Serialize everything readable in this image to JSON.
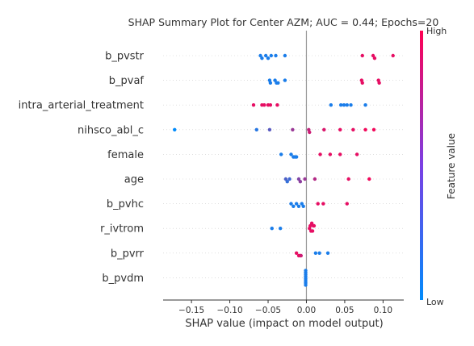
{
  "chart_data": {
    "type": "scatter",
    "title": "SHAP Summary Plot for Center AZM; AUC = 0.44; Epochs=20",
    "xlabel": "SHAP value (impact on model output)",
    "xlim": [
      -0.187,
      0.127
    ],
    "xticks": [
      -0.15,
      -0.1,
      -0.05,
      0.0,
      0.05,
      0.1
    ],
    "xtick_labels": [
      "−0.15",
      "−0.10",
      "−0.05",
      "0.00",
      "0.05",
      "0.10"
    ],
    "grid": false,
    "colors": {
      "low": "#008bfb",
      "high": "#ff0052"
    },
    "colorbar": {
      "label": "Feature value",
      "high_label": "High",
      "low_label": "Low"
    },
    "features": [
      {
        "name": "b_pvstr",
        "points": [
          [
            -0.06,
            0.1
          ],
          [
            -0.058,
            0.1
          ],
          [
            -0.053,
            0.1
          ],
          [
            -0.05,
            0.1
          ],
          [
            -0.046,
            0.1
          ],
          [
            -0.04,
            0.1
          ],
          [
            -0.028,
            0.1
          ],
          [
            0.073,
            0.9
          ],
          [
            0.087,
            0.9
          ],
          [
            0.089,
            0.9
          ],
          [
            0.113,
            0.9
          ]
        ]
      },
      {
        "name": "b_pvaf",
        "points": [
          [
            -0.048,
            0.1
          ],
          [
            -0.047,
            0.1
          ],
          [
            -0.041,
            0.1
          ],
          [
            -0.039,
            0.1
          ],
          [
            -0.037,
            0.1
          ],
          [
            -0.028,
            0.1
          ],
          [
            0.072,
            0.9
          ],
          [
            0.073,
            0.9
          ],
          [
            0.094,
            0.9
          ],
          [
            0.095,
            0.9
          ]
        ]
      },
      {
        "name": "intra_arterial_treatment",
        "points": [
          [
            -0.069,
            0.9
          ],
          [
            -0.058,
            0.9
          ],
          [
            -0.055,
            0.9
          ],
          [
            -0.05,
            0.9
          ],
          [
            -0.047,
            0.9
          ],
          [
            -0.038,
            0.9
          ],
          [
            0.032,
            0.1
          ],
          [
            0.045,
            0.1
          ],
          [
            0.049,
            0.1
          ],
          [
            0.053,
            0.1
          ],
          [
            0.058,
            0.1
          ],
          [
            0.077,
            0.1
          ]
        ]
      },
      {
        "name": "nihsco_abl_c",
        "points": [
          [
            -0.172,
            0.0
          ],
          [
            -0.065,
            0.15
          ],
          [
            -0.048,
            0.35
          ],
          [
            -0.018,
            0.6
          ],
          [
            0.003,
            0.75
          ],
          [
            0.004,
            0.8
          ],
          [
            0.023,
            0.85
          ],
          [
            0.044,
            0.9
          ],
          [
            0.061,
            0.9
          ],
          [
            0.077,
            0.95
          ],
          [
            0.088,
            0.95
          ]
        ]
      },
      {
        "name": "female",
        "points": [
          [
            -0.033,
            0.1
          ],
          [
            -0.02,
            0.1
          ],
          [
            -0.017,
            0.1
          ],
          [
            -0.015,
            0.1
          ],
          [
            -0.013,
            0.1
          ],
          [
            0.018,
            0.9
          ],
          [
            0.031,
            0.9
          ],
          [
            0.044,
            0.9
          ],
          [
            0.066,
            0.9
          ]
        ]
      },
      {
        "name": "age",
        "points": [
          [
            -0.027,
            0.3
          ],
          [
            -0.025,
            0.2
          ],
          [
            -0.022,
            0.25
          ],
          [
            -0.01,
            0.5
          ],
          [
            -0.008,
            0.55
          ],
          [
            -0.002,
            0.6
          ],
          [
            0.011,
            0.7
          ],
          [
            0.055,
            0.9
          ],
          [
            0.082,
            0.95
          ]
        ]
      },
      {
        "name": "b_pvhc",
        "points": [
          [
            -0.02,
            0.1
          ],
          [
            -0.017,
            0.1
          ],
          [
            -0.013,
            0.1
          ],
          [
            -0.01,
            0.1
          ],
          [
            -0.006,
            0.1
          ],
          [
            -0.004,
            0.1
          ],
          [
            0.015,
            0.9
          ],
          [
            0.022,
            0.9
          ],
          [
            0.053,
            0.9
          ]
        ]
      },
      {
        "name": "r_ivtrom",
        "points": [
          [
            -0.045,
            0.1
          ],
          [
            -0.034,
            0.1
          ],
          [
            0.004,
            0.9
          ],
          [
            0.006,
            0.9
          ],
          [
            0.008,
            0.9
          ],
          [
            0.009,
            0.9
          ],
          [
            0.01,
            0.9
          ],
          [
            0.005,
            0.9
          ],
          [
            0.007,
            0.9
          ]
        ]
      },
      {
        "name": "b_pvrr",
        "points": [
          [
            -0.013,
            0.9
          ],
          [
            -0.01,
            0.9
          ],
          [
            -0.008,
            0.9
          ],
          [
            -0.007,
            0.8
          ],
          [
            0.012,
            0.1
          ],
          [
            0.017,
            0.1
          ],
          [
            0.028,
            0.1
          ]
        ]
      },
      {
        "name": "b_pvdm",
        "points": [
          [
            -0.001,
            0.1
          ],
          [
            -0.001,
            0.1
          ],
          [
            -0.001,
            0.1
          ],
          [
            -0.001,
            0.1
          ],
          [
            -0.001,
            0.1
          ],
          [
            -0.001,
            0.1
          ],
          [
            -0.001,
            0.1
          ],
          [
            -0.001,
            0.1
          ]
        ]
      }
    ]
  }
}
